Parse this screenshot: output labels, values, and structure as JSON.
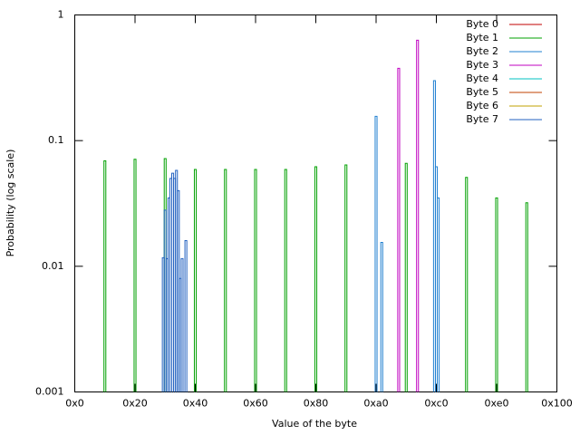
{
  "chart_data": {
    "type": "histeps",
    "x_label": "Value of the byte",
    "y_label": "Probability (log scale)",
    "log_y": true,
    "legend": "top-right",
    "xlim": [
      0,
      256
    ],
    "xticks": [
      {
        "value": 0,
        "label": "0x0"
      },
      {
        "value": 32,
        "label": "0x20"
      },
      {
        "value": 64,
        "label": "0x40"
      },
      {
        "value": 96,
        "label": "0x60"
      },
      {
        "value": 128,
        "label": "0x80"
      },
      {
        "value": 160,
        "label": "0xa0"
      },
      {
        "value": 192,
        "label": "0xc0"
      },
      {
        "value": 224,
        "label": "0xe0"
      },
      {
        "value": 256,
        "label": "0x100"
      }
    ],
    "ylim": [
      0.001,
      1
    ],
    "yticks": [
      0.001,
      0.01,
      0.1,
      1
    ],
    "series": [
      {
        "name": "Byte 0",
        "color": "#c00000",
        "x": [],
        "values": []
      },
      {
        "name": "Byte 1",
        "color": "#00a000",
        "x": [
          16,
          32,
          48,
          64,
          80,
          96,
          112,
          128,
          144,
          176,
          208,
          224,
          240
        ],
        "values": [
          0.069,
          0.071,
          0.072,
          0.059,
          0.059,
          0.059,
          0.059,
          0.062,
          0.064,
          0.066,
          0.051,
          0.035,
          0.032
        ]
      },
      {
        "name": "Byte 2",
        "color": "#2080d0",
        "x": [
          160,
          163,
          191,
          192,
          193
        ],
        "values": [
          0.156,
          0.0155,
          0.3,
          0.062,
          0.035
        ]
      },
      {
        "name": "Byte 3",
        "color": "#c000c0",
        "x": [
          172,
          182
        ],
        "values": [
          0.376,
          0.63
        ]
      },
      {
        "name": "Byte 4",
        "color": "#00c0c0",
        "x": [],
        "values": []
      },
      {
        "name": "Byte 5",
        "color": "#c04000",
        "x": [],
        "values": []
      },
      {
        "name": "Byte 6",
        "color": "#c0a000",
        "x": [],
        "values": []
      },
      {
        "name": "Byte 7",
        "color": "#2060c0",
        "x": [
          47,
          48,
          49,
          50,
          51,
          52,
          53,
          54,
          55,
          56,
          57,
          59
        ],
        "values": [
          0.0117,
          0.028,
          0.0115,
          0.035,
          0.05,
          0.055,
          0.05,
          0.058,
          0.04,
          0.008,
          0.0115,
          0.016
        ]
      }
    ]
  }
}
